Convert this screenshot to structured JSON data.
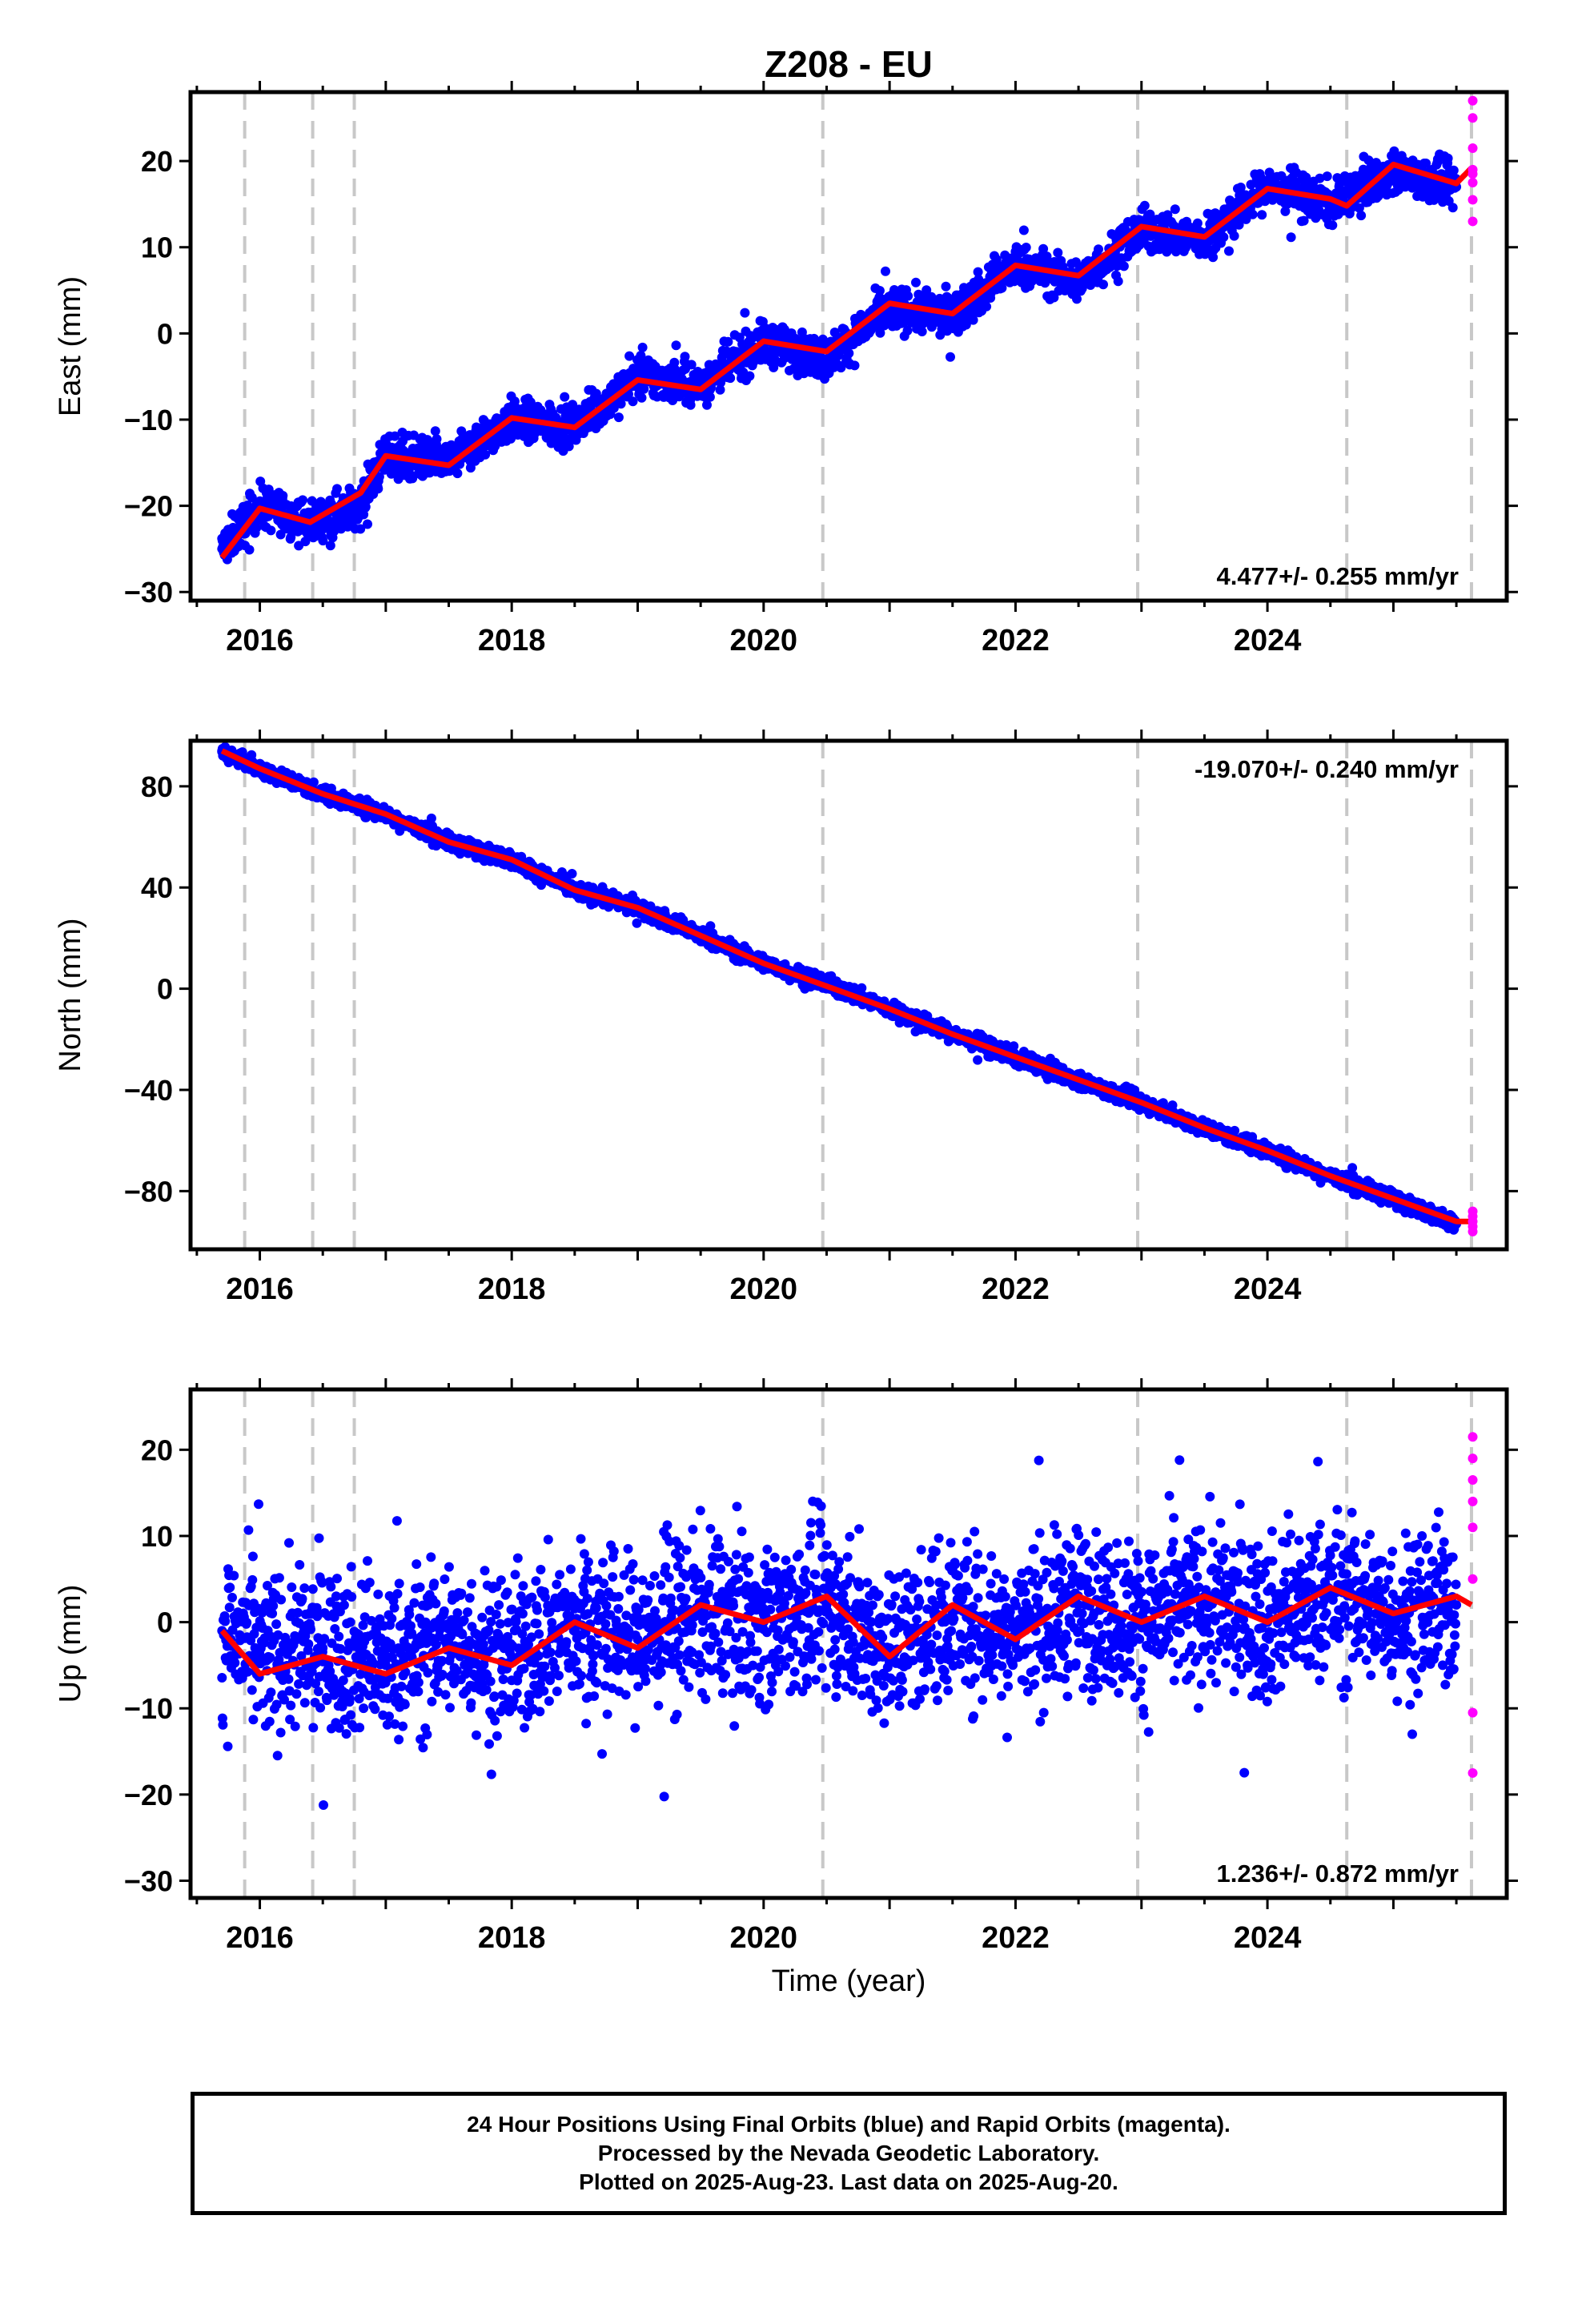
{
  "title": "Z208 - EU",
  "xlabel": "Time (year)",
  "x_ticks": [
    "2016",
    "2018",
    "2020",
    "2022",
    "2024"
  ],
  "colors": {
    "final_orbits": "#0000ff",
    "rapid_orbits": "#ff00ff",
    "model_fit": "#ff0000",
    "event_lines": "#c8c8c8"
  },
  "footer": {
    "line1": "24 Hour Positions Using Final Orbits (blue) and Rapid Orbits (magenta).",
    "line2": "Processed by the Nevada Geodetic Laboratory.",
    "line3": "Plotted on 2025-Aug-23. Last data on 2025-Aug-20."
  },
  "chart_data": [
    {
      "type": "scatter",
      "ylabel": "East (mm)",
      "rate_label": "4.477+/- 0.255 mm/yr",
      "rate_position": "bottom-right",
      "xlim": [
        2015.45,
        2025.9
      ],
      "ylim": [
        -31,
        28
      ],
      "y_ticks": [
        "20",
        "10",
        "0",
        "−10",
        "−20",
        "−30"
      ],
      "y_tick_values": [
        20,
        10,
        0,
        -10,
        -20,
        -30
      ],
      "event_lines": [
        2015.88,
        2016.42,
        2016.75,
        2020.47,
        2022.97,
        2024.63,
        2025.62
      ],
      "series": [
        {
          "name": "Final Orbits",
          "color": "#0000ff",
          "x": [
            2015.7,
            2016.0,
            2016.4,
            2016.8,
            2017.0,
            2017.5,
            2018.0,
            2018.5,
            2019.0,
            2019.5,
            2020.0,
            2020.5,
            2021.0,
            2021.5,
            2022.0,
            2022.5,
            2023.0,
            2023.5,
            2024.0,
            2024.5,
            2025.0,
            2025.5
          ],
          "y": [
            -25,
            -20,
            -22,
            -20,
            -14,
            -15,
            -10,
            -11,
            -5,
            -6,
            -1,
            -3,
            3,
            2,
            8,
            6,
            12,
            11,
            17,
            15,
            19,
            17
          ]
        },
        {
          "name": "Rapid Orbits",
          "color": "#ff00ff",
          "x": [
            2025.63,
            2025.63,
            2025.63,
            2025.63,
            2025.63,
            2025.63,
            2025.63,
            2025.63
          ],
          "y": [
            27,
            25,
            21.5,
            19,
            17.5,
            15.5,
            13,
            18.5
          ]
        },
        {
          "name": "Model Fit",
          "color": "#ff0000",
          "x": [
            2015.7,
            2016.0,
            2016.4,
            2016.8,
            2017.0,
            2017.5,
            2018.0,
            2018.5,
            2019.0,
            2019.5,
            2020.0,
            2020.5,
            2021.0,
            2021.5,
            2022.0,
            2022.5,
            2023.0,
            2023.5,
            2024.0,
            2024.5,
            2024.63,
            2025.0,
            2025.5,
            2025.62
          ],
          "y": [
            -26,
            -20.3,
            -21.9,
            -18.5,
            -14.2,
            -15.3,
            -9.8,
            -10.9,
            -5.4,
            -6.5,
            -0.9,
            -2.1,
            3.5,
            2.3,
            7.9,
            6.7,
            12.4,
            11.2,
            16.8,
            15.6,
            14.8,
            19.6,
            17.4,
            19.2
          ]
        }
      ]
    },
    {
      "type": "scatter",
      "ylabel": "North (mm)",
      "rate_label": "-19.070+/- 0.240 mm/yr",
      "rate_position": "top-right",
      "xlim": [
        2015.45,
        2025.9
      ],
      "ylim": [
        -103,
        98
      ],
      "y_ticks": [
        "80",
        "40",
        "0",
        "−40",
        "−80"
      ],
      "y_tick_values": [
        80,
        40,
        0,
        -40,
        -80
      ],
      "event_lines": [
        2015.88,
        2016.42,
        2016.75,
        2020.47,
        2022.97,
        2024.63,
        2025.62
      ],
      "series": [
        {
          "name": "Final Orbits",
          "color": "#0000ff",
          "x": [
            2015.7,
            2016.0,
            2016.5,
            2017.0,
            2017.5,
            2018.0,
            2018.5,
            2019.0,
            2019.5,
            2020.0,
            2020.5,
            2021.0,
            2021.5,
            2022.0,
            2022.5,
            2023.0,
            2023.5,
            2024.0,
            2024.5,
            2025.0,
            2025.5
          ],
          "y": [
            94,
            87,
            77,
            69,
            58,
            51,
            39,
            32,
            21,
            10,
            2,
            -8,
            -18,
            -27,
            -36,
            -45,
            -55,
            -64,
            -74,
            -83,
            -93
          ]
        },
        {
          "name": "Rapid Orbits",
          "color": "#ff00ff",
          "x": [
            2025.63,
            2025.63,
            2025.63,
            2025.63,
            2025.63
          ],
          "y": [
            -88,
            -90,
            -92,
            -94,
            -96
          ]
        },
        {
          "name": "Model Fit",
          "color": "#ff0000",
          "x": [
            2015.7,
            2016.0,
            2016.5,
            2017.0,
            2017.5,
            2018.0,
            2018.5,
            2019.0,
            2019.5,
            2020.0,
            2020.5,
            2021.0,
            2021.5,
            2022.0,
            2022.5,
            2023.0,
            2023.5,
            2024.0,
            2024.5,
            2025.0,
            2025.5,
            2025.62
          ],
          "y": [
            94,
            87,
            77,
            69,
            58,
            51,
            39,
            32,
            21,
            10,
            1,
            -8,
            -18,
            -27,
            -36,
            -45,
            -55,
            -64,
            -74,
            -83,
            -92,
            -92
          ]
        }
      ]
    },
    {
      "type": "scatter",
      "ylabel": "Up (mm)",
      "rate_label": "1.236+/- 0.872 mm/yr",
      "rate_position": "bottom-right",
      "xlim": [
        2015.45,
        2025.9
      ],
      "ylim": [
        -32,
        27
      ],
      "y_ticks": [
        "20",
        "10",
        "0",
        "−10",
        "−20",
        "−30"
      ],
      "y_tick_values": [
        20,
        10,
        0,
        -10,
        -20,
        -30
      ],
      "event_lines": [
        2015.88,
        2016.42,
        2016.75,
        2020.47,
        2022.97,
        2024.63,
        2025.62
      ],
      "series": [
        {
          "name": "Final Orbits",
          "color": "#0000ff",
          "x": [
            2015.7,
            2016.0,
            2016.5,
            2017.0,
            2017.5,
            2018.0,
            2018.5,
            2019.0,
            2019.5,
            2020.0,
            2020.5,
            2021.0,
            2021.5,
            2022.0,
            2022.5,
            2023.0,
            2023.5,
            2024.0,
            2024.5,
            2025.0,
            2025.5
          ],
          "y": [
            -1,
            -4,
            -3,
            -5,
            -2,
            -4,
            0,
            -2,
            1,
            0,
            2,
            -3,
            1,
            -1,
            2,
            0,
            2,
            0,
            3,
            1,
            2
          ]
        },
        {
          "name": "Rapid Orbits",
          "color": "#ff00ff",
          "x": [
            2025.63,
            2025.63,
            2025.63,
            2025.63,
            2025.63,
            2025.63,
            2025.63,
            2025.63
          ],
          "y": [
            21.5,
            19,
            16.5,
            14,
            11,
            5,
            -10.5,
            -17.5
          ]
        },
        {
          "name": "Model Fit",
          "color": "#ff0000",
          "x": [
            2015.7,
            2016.0,
            2016.5,
            2017.0,
            2017.5,
            2018.0,
            2018.5,
            2019.0,
            2019.5,
            2020.0,
            2020.5,
            2021.0,
            2021.5,
            2022.0,
            2022.5,
            2023.0,
            2023.5,
            2024.0,
            2024.5,
            2025.0,
            2025.5,
            2025.62
          ],
          "y": [
            -1,
            -6,
            -4,
            -6,
            -3,
            -5,
            0,
            -3,
            2,
            0,
            3,
            -4,
            2,
            -2,
            3,
            0,
            3,
            0,
            4,
            1,
            3,
            2
          ]
        }
      ]
    }
  ]
}
